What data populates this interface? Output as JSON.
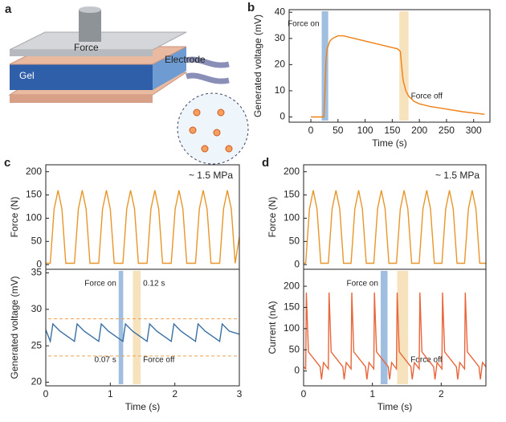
{
  "schematic": {
    "label": "a",
    "force": "Force",
    "electrode": "Electrode",
    "gel": "Gel"
  },
  "chart_data": [
    {
      "type": "line",
      "label": "b",
      "x_label": "Time (s)",
      "y_label": "Generated voltage (mV)",
      "xlim": [
        -40,
        330
      ],
      "xticks": [
        0,
        50,
        100,
        150,
        200,
        250,
        300
      ],
      "ylim": [
        -2,
        41
      ],
      "yticks": [
        0,
        10,
        20,
        30,
        40
      ],
      "x": [
        0,
        10,
        20,
        24,
        26,
        28,
        30,
        35,
        40,
        50,
        60,
        80,
        100,
        120,
        140,
        160,
        165,
        167,
        170,
        175,
        180,
        190,
        200,
        220,
        250,
        280,
        320
      ],
      "series": [
        {
          "color": "#f07f14",
          "values": [
            0,
            0,
            0,
            0,
            10,
            22,
            26,
            29,
            30,
            31,
            31,
            30,
            29,
            28,
            27,
            26,
            25,
            20,
            14,
            10,
            8,
            6,
            5,
            4,
            3,
            2,
            1
          ]
        }
      ],
      "spans": [
        {
          "label": "Force on",
          "xlim": [
            20,
            32
          ],
          "color": "#7fa8d6"
        },
        {
          "label": "Force off",
          "xlim": [
            163,
            180
          ],
          "color": "#f3d9a8"
        }
      ]
    },
    {
      "type": "line",
      "label": "c",
      "y_label": "Force (N)",
      "note": "~ 1.5 MPa",
      "xlim": [
        0,
        3
      ],
      "ylim": [
        -10,
        215
      ],
      "yticks": [
        0,
        50,
        100,
        150,
        200
      ],
      "x": [
        0,
        0.07,
        0.13,
        0.19,
        0.25,
        0.31,
        0.445,
        0.505,
        0.565,
        0.625,
        0.685,
        0.82,
        0.88,
        0.94,
        1.0,
        1.06,
        1.195,
        1.255,
        1.315,
        1.375,
        1.435,
        1.57,
        1.63,
        1.69,
        1.75,
        1.81,
        1.945,
        2.005,
        2.065,
        2.125,
        2.185,
        2.32,
        2.38,
        2.44,
        2.5,
        2.56,
        2.695,
        2.755,
        2.815,
        2.875,
        2.935,
        3.0
      ],
      "series": [
        {
          "color": "#e8962a",
          "values": [
            3,
            3,
            120,
            160,
            120,
            3,
            3,
            120,
            160,
            120,
            3,
            3,
            120,
            160,
            120,
            3,
            3,
            120,
            160,
            120,
            3,
            3,
            120,
            160,
            120,
            3,
            3,
            120,
            160,
            120,
            3,
            3,
            120,
            160,
            120,
            3,
            3,
            120,
            160,
            120,
            3,
            60
          ]
        }
      ]
    },
    {
      "type": "line",
      "x_label": "Time (s)",
      "y_label": "Generated voltage (mV)",
      "xlim": [
        0,
        3
      ],
      "xticks": [
        0,
        1,
        2,
        3
      ],
      "ylim": [
        19.5,
        35.5
      ],
      "yticks": [
        20,
        25,
        30,
        35
      ],
      "x": [
        0,
        0.07,
        0.11,
        0.22,
        0.445,
        0.485,
        0.595,
        0.82,
        0.86,
        0.97,
        1.195,
        1.235,
        1.345,
        1.57,
        1.61,
        1.72,
        1.945,
        1.985,
        2.095,
        2.32,
        2.36,
        2.47,
        2.695,
        2.735,
        2.845,
        3.0
      ],
      "series": [
        {
          "color": "#3a6fa5",
          "values": [
            27.2,
            25.6,
            28,
            27,
            25.6,
            28,
            27,
            25.6,
            28,
            27,
            25.6,
            28,
            27,
            25.6,
            28,
            27,
            25.6,
            28,
            27,
            25.6,
            28,
            27,
            25.6,
            28,
            27,
            26.6
          ]
        }
      ],
      "hlines": [
        28.7,
        23.6
      ],
      "spans": [
        {
          "label": "Force on",
          "duration": "0.07 s",
          "xlim": [
            1.13,
            1.2
          ],
          "color": "#7fa8d6"
        },
        {
          "label": "Force off",
          "duration": "0.12 s",
          "xlim": [
            1.35,
            1.47
          ],
          "color": "#f3d9a8"
        }
      ]
    },
    {
      "type": "line",
      "label": "d",
      "y_label": "Force (N)",
      "note": "~ 1.5 MPa",
      "xlim": [
        0,
        2.65
      ],
      "ylim": [
        -10,
        215
      ],
      "yticks": [
        0,
        50,
        100,
        150,
        200
      ],
      "x": [
        0,
        0.03,
        0.085,
        0.14,
        0.195,
        0.25,
        0.36,
        0.415,
        0.47,
        0.525,
        0.58,
        0.69,
        0.745,
        0.8,
        0.855,
        0.91,
        1.02,
        1.075,
        1.13,
        1.185,
        1.24,
        1.35,
        1.405,
        1.46,
        1.515,
        1.57,
        1.68,
        1.735,
        1.79,
        1.845,
        1.9,
        2.01,
        2.065,
        2.12,
        2.175,
        2.23,
        2.34,
        2.395,
        2.45,
        2.505,
        2.56,
        2.65
      ],
      "series": [
        {
          "color": "#e8962a",
          "values": [
            3,
            3,
            120,
            160,
            120,
            3,
            3,
            120,
            160,
            120,
            3,
            3,
            120,
            160,
            120,
            3,
            3,
            120,
            160,
            120,
            3,
            3,
            120,
            160,
            120,
            3,
            3,
            120,
            160,
            120,
            3,
            3,
            120,
            160,
            120,
            3,
            3,
            120,
            160,
            120,
            3,
            3
          ]
        }
      ]
    },
    {
      "type": "line",
      "x_label": "Time (s)",
      "y_label": "Current (nA)",
      "xlim": [
        0,
        2.65
      ],
      "xticks": [
        0,
        1,
        2
      ],
      "ylim": [
        -35,
        240
      ],
      "yticks": [
        0,
        50,
        100,
        150,
        200
      ],
      "x": [
        0,
        0.03,
        0.04,
        0.07,
        0.24,
        0.26,
        0.29,
        0.36,
        0.37,
        0.4,
        0.57,
        0.59,
        0.62,
        0.69,
        0.7,
        0.73,
        0.9,
        0.92,
        0.95,
        1.02,
        1.03,
        1.06,
        1.23,
        1.25,
        1.28,
        1.35,
        1.36,
        1.39,
        1.56,
        1.58,
        1.61,
        1.68,
        1.69,
        1.72,
        1.89,
        1.91,
        1.94,
        2.01,
        2.02,
        2.05,
        2.22,
        2.24,
        2.27,
        2.34,
        2.35,
        2.38,
        2.55,
        2.57,
        2.6,
        2.65
      ],
      "series": [
        {
          "color": "#e8663c",
          "values": [
            10,
            5,
            185,
            45,
            10,
            -20,
            20,
            5,
            185,
            45,
            10,
            -20,
            20,
            5,
            185,
            45,
            10,
            -20,
            20,
            5,
            185,
            45,
            10,
            -20,
            20,
            5,
            185,
            45,
            10,
            -20,
            20,
            5,
            185,
            45,
            10,
            -20,
            20,
            5,
            185,
            45,
            10,
            -20,
            20,
            5,
            185,
            45,
            10,
            -20,
            20,
            10
          ]
        }
      ],
      "spans": [
        {
          "label": "Force on",
          "xlim": [
            1.12,
            1.22
          ],
          "color": "#7fa8d6"
        },
        {
          "label": "Force off",
          "xlim": [
            1.36,
            1.52
          ],
          "color": "#f3d9a8"
        }
      ]
    }
  ]
}
